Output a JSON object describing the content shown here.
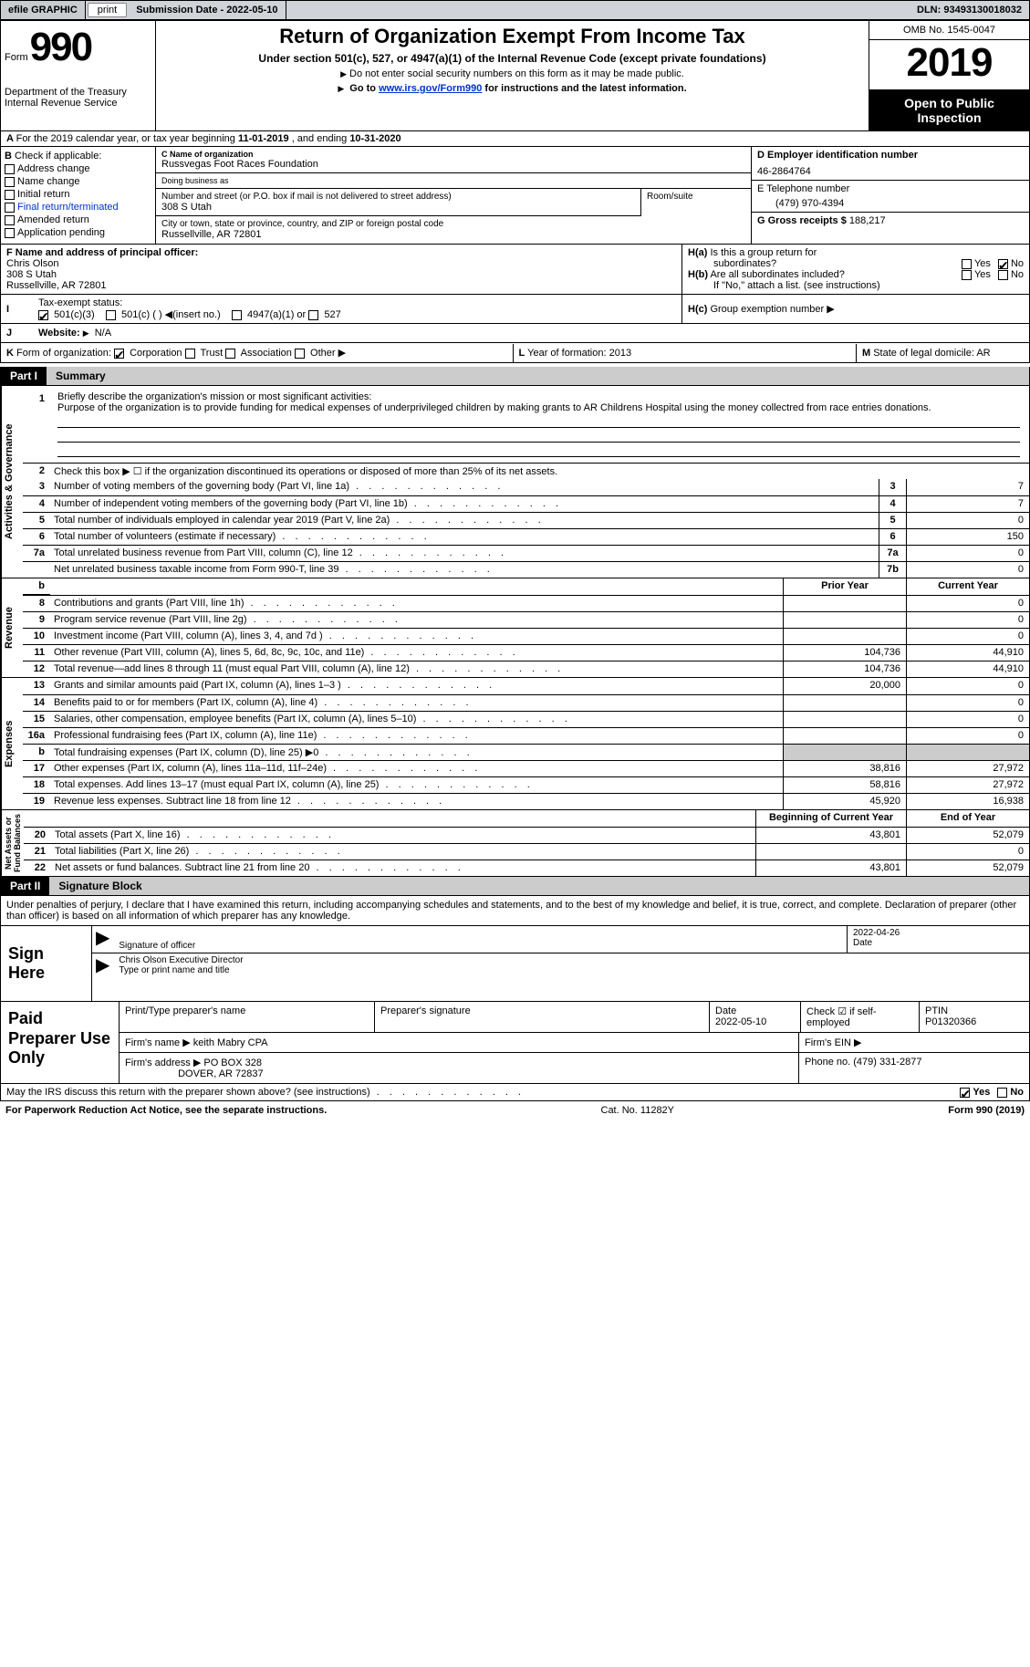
{
  "topbar": {
    "efile": "efile GRAPHIC",
    "print": "print",
    "submission_label": "Submission Date - ",
    "submission_date": "2022-05-10",
    "dln_label": "DLN: ",
    "dln": "93493130018032"
  },
  "header": {
    "form_word": "Form",
    "form_number": "990",
    "dept": "Department of the Treasury\nInternal Revenue Service",
    "title": "Return of Organization Exempt From Income Tax",
    "subtitle": "Under section 501(c), 527, or 4947(a)(1) of the Internal Revenue Code (except private foundations)",
    "line1": "Do not enter social security numbers on this form as it may be made public.",
    "line2_pre": "Go to ",
    "line2_link": "www.irs.gov/Form990",
    "line2_post": " for instructions and the latest information.",
    "omb": "OMB No. 1545-0047",
    "year": "2019",
    "open_public": "Open to Public Inspection"
  },
  "section_a": {
    "pre": "For the 2019 calendar year, or tax year beginning ",
    "begin": "11-01-2019",
    "mid": " , and ending ",
    "end": "10-31-2020"
  },
  "b": {
    "header": "Check if applicable:",
    "items": [
      "Address change",
      "Name change",
      "Initial return",
      "Final return/terminated",
      "Amended return",
      "Application pending"
    ],
    "pending_sup": "Pending"
  },
  "c": {
    "name_label": "C Name of organization",
    "name": "Russvegas Foot Races Foundation",
    "dba_label": "Doing business as",
    "addr_label": "Number and street (or P.O. box if mail is not delivered to street address)",
    "room_label": "Room/suite",
    "addr": "308 S Utah",
    "city_label": "City or town, state or province, country, and ZIP or foreign postal code",
    "city": "Russellville, AR  72801"
  },
  "d": {
    "label": "D Employer identification number",
    "value": "46-2864764"
  },
  "e": {
    "label": "E Telephone number",
    "value": "(479) 970-4394"
  },
  "g": {
    "label": "G Gross receipts $ ",
    "value": "188,217"
  },
  "f": {
    "label": "F  Name and address of principal officer:",
    "name": "Chris Olson",
    "addr1": "308 S Utah",
    "addr2": "Russellville, AR  72801"
  },
  "h": {
    "a_label": "Is this a group return for",
    "a_label2": "subordinates?",
    "b_label": "Are all subordinates included?",
    "b_note": "If \"No,\" attach a list. (see instructions)",
    "c_label": "Group exemption number",
    "yes": "Yes",
    "no": "No"
  },
  "i": {
    "label": "Tax-exempt status:",
    "opts": [
      "501(c)(3)",
      "501(c) (  )",
      "(insert no.)",
      "4947(a)(1) or",
      "527"
    ]
  },
  "j": {
    "label": "Website:",
    "value": "N/A"
  },
  "k": {
    "label": "Form of organization:",
    "opts": [
      "Corporation",
      "Trust",
      "Association",
      "Other"
    ]
  },
  "l": {
    "label": "Year of formation: ",
    "value": "2013"
  },
  "m": {
    "label": "State of legal domicile: ",
    "value": "AR"
  },
  "part1": {
    "num": "Part I",
    "title": "Summary",
    "vert_labels": [
      "Activities & Governance",
      "Revenue",
      "Expenses",
      "Net Assets or\nFund Balances"
    ],
    "mission_label": "Briefly describe the organization's mission or most significant activities:",
    "mission": "Purpose of the organization is to provide funding for medical expenses of underprivileged children by making grants to AR Childrens Hospital using the money collectred from race entries donations.",
    "line2": "Check this box ▶ ☐  if the organization discontinued its operations or disposed of more than 25% of its net assets.",
    "rows_gov": [
      {
        "n": "3",
        "d": "Number of voting members of the governing body (Part VI, line 1a)",
        "rn": "3",
        "v": "7"
      },
      {
        "n": "4",
        "d": "Number of independent voting members of the governing body (Part VI, line 1b)",
        "rn": "4",
        "v": "7"
      },
      {
        "n": "5",
        "d": "Total number of individuals employed in calendar year 2019 (Part V, line 2a)",
        "rn": "5",
        "v": "0"
      },
      {
        "n": "6",
        "d": "Total number of volunteers (estimate if necessary)",
        "rn": "6",
        "v": "150"
      },
      {
        "n": "7a",
        "d": "Total unrelated business revenue from Part VIII, column (C), line 12",
        "rn": "7a",
        "v": "0"
      },
      {
        "n": "",
        "d": "Net unrelated business taxable income from Form 990-T, line 39",
        "rn": "7b",
        "v": "0"
      }
    ],
    "col_hdrs": {
      "prior": "Prior Year",
      "current": "Current Year"
    },
    "rows_rev": [
      {
        "n": "8",
        "d": "Contributions and grants (Part VIII, line 1h)",
        "p": "",
        "c": "0"
      },
      {
        "n": "9",
        "d": "Program service revenue (Part VIII, line 2g)",
        "p": "",
        "c": "0"
      },
      {
        "n": "10",
        "d": "Investment income (Part VIII, column (A), lines 3, 4, and 7d )",
        "p": "",
        "c": "0"
      },
      {
        "n": "11",
        "d": "Other revenue (Part VIII, column (A), lines 5, 6d, 8c, 9c, 10c, and 11e)",
        "p": "104,736",
        "c": "44,910"
      },
      {
        "n": "12",
        "d": "Total revenue—add lines 8 through 11 (must equal Part VIII, column (A), line 12)",
        "p": "104,736",
        "c": "44,910"
      }
    ],
    "rows_exp": [
      {
        "n": "13",
        "d": "Grants and similar amounts paid (Part IX, column (A), lines 1–3 )",
        "p": "20,000",
        "c": "0"
      },
      {
        "n": "14",
        "d": "Benefits paid to or for members (Part IX, column (A), line 4)",
        "p": "",
        "c": "0"
      },
      {
        "n": "15",
        "d": "Salaries, other compensation, employee benefits (Part IX, column (A), lines 5–10)",
        "p": "",
        "c": "0"
      },
      {
        "n": "16a",
        "d": "Professional fundraising fees (Part IX, column (A), line 11e)",
        "p": "",
        "c": "0"
      },
      {
        "n": "b",
        "d": "Total fundraising expenses (Part IX, column (D), line 25) ▶0",
        "p": "SHADE",
        "c": "SHADE"
      },
      {
        "n": "17",
        "d": "Other expenses (Part IX, column (A), lines 11a–11d, 11f–24e)",
        "p": "38,816",
        "c": "27,972"
      },
      {
        "n": "18",
        "d": "Total expenses. Add lines 13–17 (must equal Part IX, column (A), line 25)",
        "p": "58,816",
        "c": "27,972"
      },
      {
        "n": "19",
        "d": "Revenue less expenses. Subtract line 18 from line 12",
        "p": "45,920",
        "c": "16,938"
      }
    ],
    "na_hdrs": {
      "begin": "Beginning of Current Year",
      "end": "End of Year"
    },
    "rows_na": [
      {
        "n": "20",
        "d": "Total assets (Part X, line 16)",
        "p": "43,801",
        "c": "52,079"
      },
      {
        "n": "21",
        "d": "Total liabilities (Part X, line 26)",
        "p": "",
        "c": "0"
      },
      {
        "n": "22",
        "d": "Net assets or fund balances. Subtract line 21 from line 20",
        "p": "43,801",
        "c": "52,079"
      }
    ]
  },
  "part2": {
    "num": "Part II",
    "title": "Signature Block",
    "declaration": "Under penalties of perjury, I declare that I have examined this return, including accompanying schedules and statements, and to the best of my knowledge and belief, it is true, correct, and complete. Declaration of preparer (other than officer) is based on all information of which preparer has any knowledge."
  },
  "sign": {
    "here": "Sign Here",
    "sig_label": "Signature of officer",
    "date_label": "Date",
    "date": "2022-04-26",
    "name": "Chris Olson Executive Director",
    "name_label": "Type or print name and title"
  },
  "paid": {
    "here": "Paid Preparer Use Only",
    "r1": {
      "c1": "Print/Type preparer's name",
      "c2": "Preparer's signature",
      "c3_l": "Date",
      "c3_v": "2022-05-10",
      "c4_l": "Check ☑ if self-employed",
      "c5_l": "PTIN",
      "c5_v": "P01320366"
    },
    "r2": {
      "label": "Firm's name   ▶",
      "val": "keith Mabry CPA",
      "ein": "Firm's EIN ▶"
    },
    "r3": {
      "label": "Firm's address ▶",
      "val": "PO BOX 328",
      "val2": "DOVER, AR  72837",
      "phone_l": "Phone no. ",
      "phone": "(479) 331-2877"
    }
  },
  "discuss": {
    "q": "May the IRS discuss this return with the preparer shown above? (see instructions)",
    "yes": "Yes",
    "no": "No"
  },
  "footer": {
    "left": "For Paperwork Reduction Act Notice, see the separate instructions.",
    "mid": "Cat. No. 11282Y",
    "right": "Form 990 (2019)"
  }
}
